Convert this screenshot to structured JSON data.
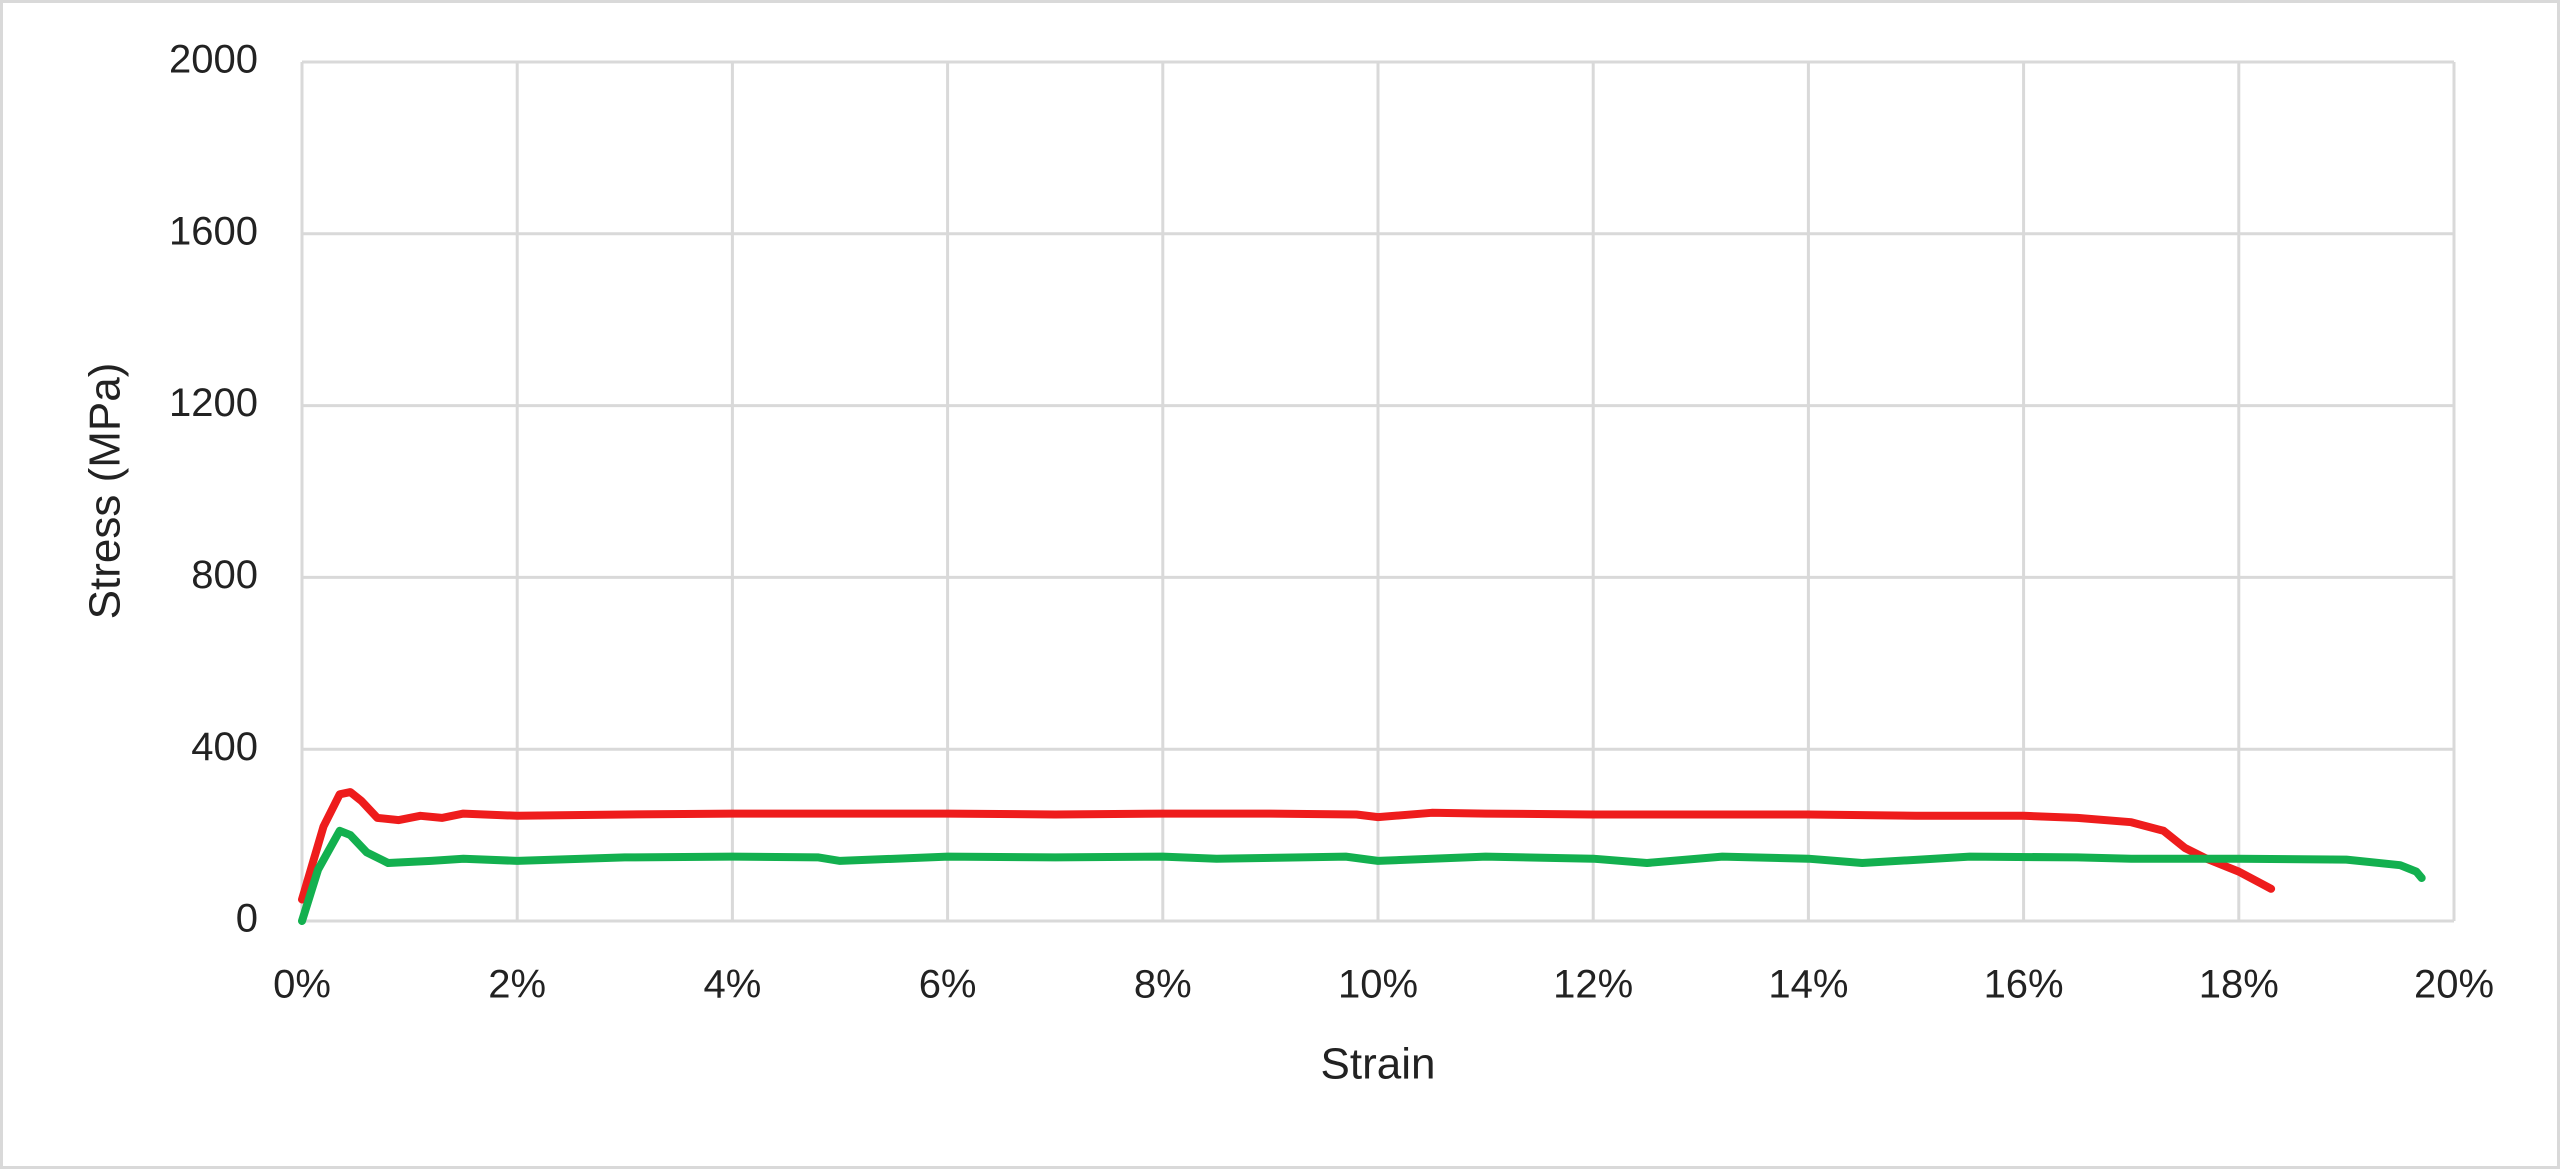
{
  "chart_data": {
    "type": "line",
    "x_label": "Strain",
    "y_label": "Stress (MPa)",
    "xlim": [
      0,
      20
    ],
    "xticks": [
      {
        "value": 0,
        "label": "0%"
      },
      {
        "value": 2,
        "label": "2%"
      },
      {
        "value": 4,
        "label": "4%"
      },
      {
        "value": 6,
        "label": "6%"
      },
      {
        "value": 8,
        "label": "8%"
      },
      {
        "value": 10,
        "label": "10%"
      },
      {
        "value": 12,
        "label": "12%"
      },
      {
        "value": 14,
        "label": "14%"
      },
      {
        "value": 16,
        "label": "16%"
      },
      {
        "value": 18,
        "label": "18%"
      },
      {
        "value": 20,
        "label": "20%"
      }
    ],
    "ylim": [
      0,
      2000
    ],
    "yticks": [
      0,
      400,
      800,
      1200,
      1600,
      2000
    ],
    "grid": true,
    "series": [
      {
        "color": "#ee1c1c",
        "x": [
          0,
          0.2,
          0.35,
          0.45,
          0.55,
          0.7,
          0.9,
          1.1,
          1.3,
          1.5,
          2,
          3,
          4,
          5,
          6,
          7,
          8,
          9,
          9.8,
          10,
          10.5,
          11,
          12,
          13,
          14,
          15,
          16,
          16.5,
          17,
          17.3,
          17.5,
          17.7,
          18,
          18.3
        ],
        "values": [
          50,
          220,
          295,
          300,
          280,
          240,
          235,
          245,
          240,
          250,
          245,
          248,
          250,
          250,
          250,
          248,
          250,
          250,
          248,
          242,
          252,
          250,
          248,
          248,
          248,
          245,
          245,
          240,
          230,
          210,
          170,
          145,
          115,
          75
        ]
      },
      {
        "color": "#13b04f",
        "x": [
          0,
          0.15,
          0.35,
          0.45,
          0.6,
          0.8,
          1.2,
          1.5,
          2,
          3,
          4,
          4.8,
          5,
          6,
          7,
          8,
          8.5,
          9.7,
          10,
          11,
          12,
          12.5,
          13.2,
          14,
          14.5,
          15.5,
          16.5,
          17,
          18,
          19,
          19.5,
          19.65,
          19.7
        ],
        "values": [
          0,
          120,
          210,
          200,
          160,
          135,
          140,
          145,
          140,
          148,
          150,
          148,
          140,
          150,
          148,
          150,
          145,
          150,
          140,
          150,
          145,
          135,
          150,
          145,
          135,
          150,
          148,
          145,
          145,
          143,
          130,
          115,
          100
        ]
      }
    ]
  }
}
